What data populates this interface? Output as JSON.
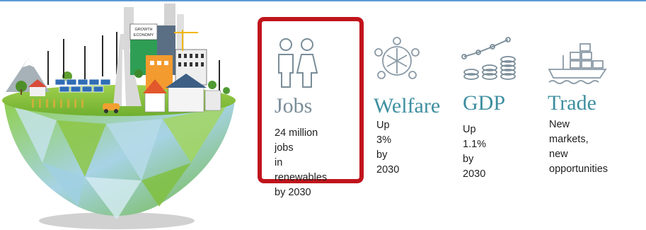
{
  "globe": {
    "sign_text": [
      "GROWTH",
      "ECONOMY"
    ]
  },
  "cards": [
    {
      "title": "Jobs",
      "description": "24 million jobs\nin renewables\nby 2030",
      "icon": "people-icon",
      "highlighted": true
    },
    {
      "title": "Welfare",
      "description": "Up 3%\nby 2030",
      "icon": "community-icon",
      "highlighted": false
    },
    {
      "title": "GDP",
      "description": "Up 1.1%\nby 2030",
      "icon": "growth-coins-icon",
      "highlighted": false
    },
    {
      "title": "Trade",
      "description": "New markets,\nnew opportunities",
      "icon": "cargo-ship-icon",
      "highlighted": false
    }
  ],
  "colors": {
    "jobs": "#7a8d99",
    "welfare": "#3e8fa0",
    "gdp": "#3e8fa0",
    "trade": "#3e8fa0",
    "highlight": "#c0141c",
    "top_rule": "#5b9bd5"
  }
}
